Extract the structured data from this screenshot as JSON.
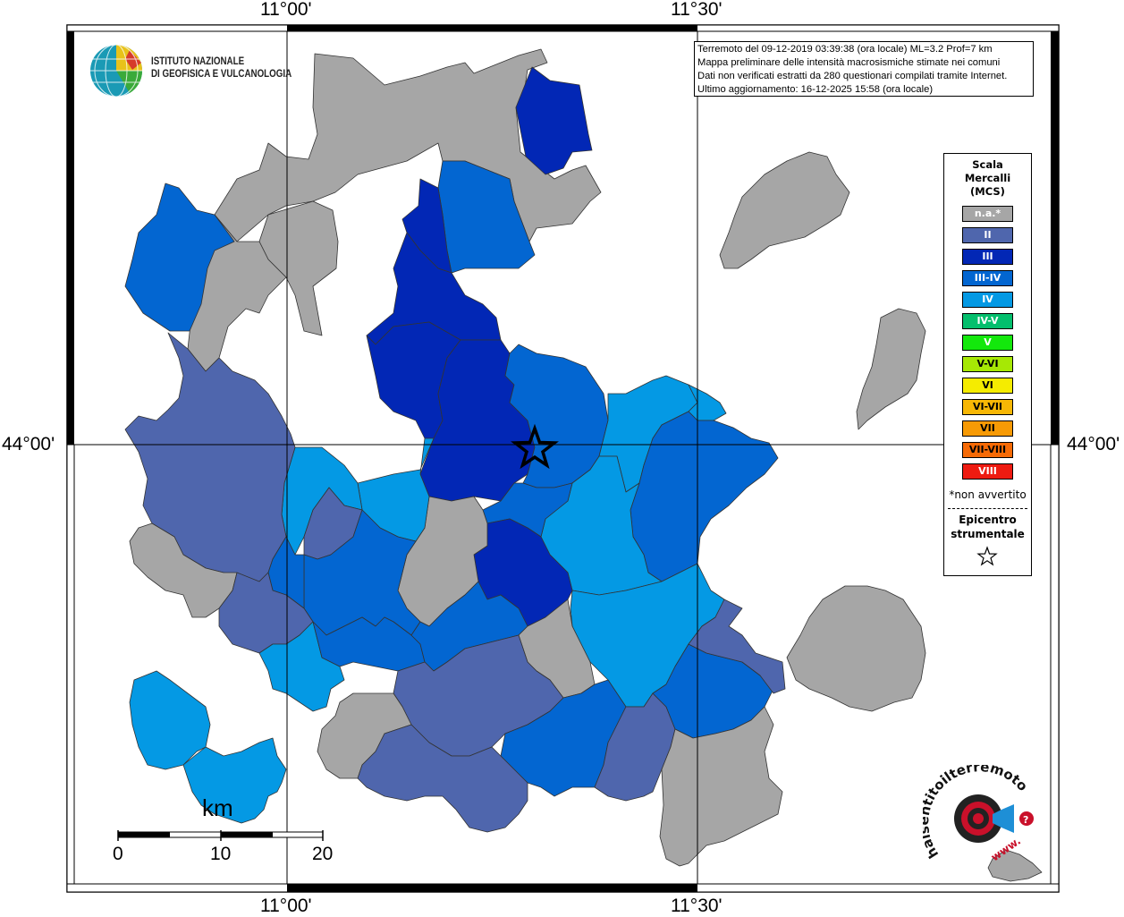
{
  "map": {
    "grid_labels": {
      "top_left_lon": "11°00'",
      "top_right_lon": "11°30'",
      "bottom_left_lon": "11°00'",
      "bottom_right_lon": "11°30'",
      "left_lat": "44°00'",
      "right_lat": "44°00'"
    },
    "info_box": {
      "line1": "Terremoto del 09-12-2019 03:39:38 (ora locale) ML=3.2 Prof=7 km",
      "line2": "Mappa preliminare delle intensità macrosismiche stimate nei comuni",
      "line3": "Dati non verificati estratti da 280 questionari compilati tramite Internet.",
      "line4": "Ultimo aggiornamento: 16-12-2025 15:58 (ora locale)"
    },
    "logo_ingv": {
      "line1": "ISTITUTO NAZIONALE",
      "line2": "DI GEOFISICA E VULCANOLOGIA"
    },
    "logo_hst": {
      "text": "haisentitoilterremoto.it",
      "url_text": "www."
    },
    "scale_bar": {
      "unit": "km",
      "ticks": [
        "0",
        "10",
        "20"
      ]
    },
    "legend": {
      "title_line1": "Scala",
      "title_line2": "Mercalli",
      "title_line3": "(MCS)",
      "items": [
        {
          "label": "n.a.*",
          "color": "#a6a6a6"
        },
        {
          "label": "II",
          "color": "#4f66ad"
        },
        {
          "label": "III",
          "color": "#0227b5"
        },
        {
          "label": "III-IV",
          "color": "#0366d1"
        },
        {
          "label": "IV",
          "color": "#0499e4"
        },
        {
          "label": "IV-V",
          "color": "#04bf6d"
        },
        {
          "label": "V",
          "color": "#13e80c"
        },
        {
          "label": "V-VI",
          "color": "#a6e805"
        },
        {
          "label": "VI",
          "color": "#f5ec00"
        },
        {
          "label": "VI-VII",
          "color": "#f7b705"
        },
        {
          "label": "VII",
          "color": "#f79a05"
        },
        {
          "label": "VII-VIII",
          "color": "#f66a05"
        },
        {
          "label": "VIII",
          "color": "#ee1b11"
        }
      ],
      "note": "*non avvertito",
      "epicenter_line1": "Epicentro",
      "epicenter_line2": "strumentale"
    }
  }
}
